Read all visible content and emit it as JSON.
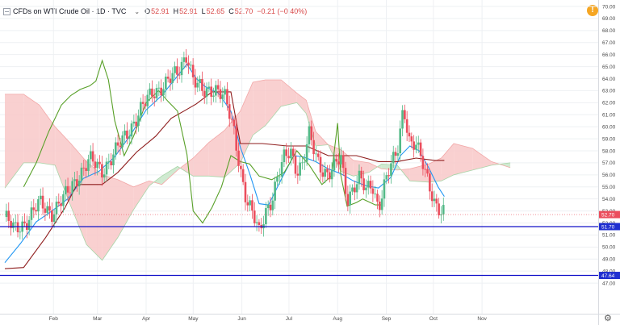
{
  "header": {
    "symbol": "CFDs on WTI Crude Oil · 1D · TVC",
    "o_label": "O",
    "o": "52.91",
    "h_label": "H",
    "h": "52.91",
    "l_label": "L",
    "l": "52.65",
    "c_label": "C",
    "c": "52.70",
    "change": "−0.21 (−0.40%)"
  },
  "colors": {
    "up": "#53b987",
    "down": "#eb4d5c",
    "tenkan": "#2196f3",
    "kijun": "#8e1c1c",
    "lagging": "#58a028",
    "cloud_bull": "#c8e6c9",
    "cloud_bear": "#f8c8c8",
    "level_line": "#1010c8",
    "price_tag": "#eb4d5c",
    "level_tag": "#2030d0"
  },
  "chart_data": {
    "type": "candlestick",
    "title": "CFDs on WTI Crude Oil · 1D · TVC",
    "ylim": [
      46.0,
      70.0
    ],
    "y_ticks": [
      "47.00",
      "48.00",
      "49.00",
      "50.00",
      "51.00",
      "52.00",
      "53.00",
      "54.00",
      "55.00",
      "56.00",
      "57.00",
      "58.00",
      "59.00",
      "60.00",
      "61.00",
      "62.00",
      "63.00",
      "64.00",
      "65.00",
      "66.00",
      "67.00",
      "68.00",
      "69.00",
      "70.00"
    ],
    "x_ticks": [
      "Feb",
      "Mar",
      "Apr",
      "May",
      "Jun",
      "Jul",
      "Aug",
      "Sep",
      "Oct",
      "Nov"
    ],
    "x_tick_days": [
      31,
      59,
      90,
      120,
      151,
      181,
      212,
      243,
      273,
      304
    ],
    "x_range_days": [
      0,
      360
    ],
    "last_price": "52.70",
    "levels": [
      {
        "value": 51.7,
        "label": "51.70"
      },
      {
        "value": 47.64,
        "label": "47.64"
      }
    ],
    "price_path": [
      [
        0,
        52.5
      ],
      [
        6,
        51.4
      ],
      [
        14,
        52.2
      ],
      [
        22,
        53.6
      ],
      [
        30,
        52.9
      ],
      [
        38,
        54.1
      ],
      [
        46,
        55.8
      ],
      [
        54,
        57.2
      ],
      [
        62,
        56.4
      ],
      [
        70,
        57.8
      ],
      [
        78,
        59.5
      ],
      [
        86,
        61.3
      ],
      [
        94,
        62.8
      ],
      [
        102,
        63.6
      ],
      [
        110,
        64.4
      ],
      [
        116,
        66.2
      ],
      [
        120,
        63.9
      ],
      [
        126,
        62.8
      ],
      [
        134,
        63.3
      ],
      [
        140,
        62.4
      ],
      [
        146,
        59.6
      ],
      [
        150,
        56.6
      ],
      [
        154,
        53.8
      ],
      [
        158,
        52.6
      ],
      [
        162,
        51.2
      ],
      [
        166,
        53.1
      ],
      [
        170,
        53.9
      ],
      [
        174,
        55.7
      ],
      [
        178,
        57.4
      ],
      [
        182,
        58.2
      ],
      [
        186,
        56.4
      ],
      [
        190,
        56.8
      ],
      [
        194,
        59.3
      ],
      [
        198,
        57.7
      ],
      [
        202,
        56.6
      ],
      [
        206,
        55.9
      ],
      [
        210,
        56.5
      ],
      [
        214,
        57.6
      ],
      [
        218,
        54.1
      ],
      [
        222,
        54.9
      ],
      [
        226,
        55.6
      ],
      [
        230,
        54.7
      ],
      [
        234,
        55.4
      ],
      [
        238,
        53.3
      ],
      [
        242,
        55.1
      ],
      [
        246,
        56.7
      ],
      [
        250,
        58.1
      ],
      [
        254,
        61.9
      ],
      [
        258,
        58.4
      ],
      [
        262,
        58.3
      ],
      [
        266,
        57.2
      ],
      [
        270,
        55.6
      ],
      [
        274,
        53.5
      ],
      [
        278,
        52.6
      ],
      [
        280,
        52.7
      ]
    ],
    "series": [
      {
        "name": "Tenkan",
        "values": [
          [
            0,
            48.7
          ],
          [
            10,
            50.3
          ],
          [
            20,
            52.1
          ],
          [
            30,
            53.0
          ],
          [
            40,
            54.0
          ],
          [
            50,
            55.7
          ],
          [
            60,
            56.3
          ],
          [
            70,
            57.5
          ],
          [
            80,
            59.3
          ],
          [
            90,
            61.4
          ],
          [
            100,
            62.6
          ],
          [
            108,
            63.9
          ],
          [
            116,
            65.2
          ],
          [
            122,
            64.0
          ],
          [
            128,
            63.3
          ],
          [
            136,
            62.8
          ],
          [
            144,
            61.3
          ],
          [
            150,
            58.3
          ],
          [
            156,
            56.1
          ],
          [
            162,
            53.6
          ],
          [
            168,
            53.5
          ],
          [
            176,
            55.6
          ],
          [
            184,
            57.6
          ],
          [
            190,
            57.5
          ],
          [
            198,
            57.1
          ],
          [
            206,
            56.5
          ],
          [
            214,
            56.1
          ],
          [
            222,
            55.5
          ],
          [
            230,
            55.1
          ],
          [
            238,
            54.9
          ],
          [
            246,
            55.8
          ],
          [
            252,
            57.6
          ],
          [
            258,
            58.4
          ],
          [
            264,
            58.0
          ],
          [
            270,
            56.6
          ],
          [
            276,
            55.0
          ],
          [
            280,
            54.2
          ]
        ]
      },
      {
        "name": "Kijun",
        "values": [
          [
            0,
            48.2
          ],
          [
            12,
            48.3
          ],
          [
            26,
            50.8
          ],
          [
            38,
            53.2
          ],
          [
            46,
            55.2
          ],
          [
            62,
            55.2
          ],
          [
            72,
            56.2
          ],
          [
            84,
            57.9
          ],
          [
            96,
            59.2
          ],
          [
            106,
            60.7
          ],
          [
            114,
            61.3
          ],
          [
            122,
            61.9
          ],
          [
            132,
            62.9
          ],
          [
            144,
            62.9
          ],
          [
            150,
            58.6
          ],
          [
            164,
            58.6
          ],
          [
            180,
            58.4
          ],
          [
            192,
            58.4
          ],
          [
            206,
            57.6
          ],
          [
            224,
            57.6
          ],
          [
            238,
            57.1
          ],
          [
            250,
            57.1
          ],
          [
            262,
            57.4
          ],
          [
            274,
            57.2
          ],
          [
            280,
            57.2
          ]
        ]
      },
      {
        "name": "Lagging Span",
        "values": [
          [
            12,
            55.0
          ],
          [
            20,
            57.0
          ],
          [
            28,
            59.6
          ],
          [
            36,
            61.8
          ],
          [
            42,
            62.6
          ],
          [
            48,
            63.1
          ],
          [
            54,
            63.4
          ],
          [
            58,
            63.8
          ],
          [
            62,
            65.5
          ],
          [
            66,
            63.9
          ],
          [
            70,
            60.5
          ],
          [
            76,
            57.6
          ],
          [
            82,
            59.2
          ],
          [
            90,
            62.0
          ],
          [
            98,
            63.0
          ],
          [
            104,
            62.1
          ],
          [
            110,
            61.3
          ],
          [
            116,
            57.7
          ],
          [
            120,
            53.0
          ],
          [
            126,
            52.0
          ],
          [
            132,
            53.3
          ],
          [
            138,
            55.0
          ],
          [
            144,
            57.6
          ],
          [
            150,
            57.1
          ],
          [
            156,
            56.9
          ],
          [
            162,
            55.9
          ],
          [
            170,
            55.6
          ],
          [
            178,
            56.2
          ],
          [
            186,
            58.0
          ],
          [
            194,
            56.8
          ],
          [
            202,
            55.2
          ],
          [
            208,
            55.9
          ],
          [
            212,
            60.3
          ],
          [
            214,
            56.0
          ],
          [
            218,
            53.4
          ],
          [
            224,
            53.7
          ],
          [
            228,
            54.0
          ],
          [
            236,
            53.5
          ],
          [
            240,
            53.5
          ]
        ]
      }
    ],
    "cloud": [
      [
        0,
        62.7,
        54.9
      ],
      [
        12,
        62.7,
        57.0
      ],
      [
        22,
        61.8,
        57.0
      ],
      [
        32,
        60.0,
        56.8
      ],
      [
        42,
        58.6,
        53.4
      ],
      [
        52,
        57.1,
        50.2
      ],
      [
        62,
        56.0,
        48.9
      ],
      [
        72,
        55.6,
        50.8
      ],
      [
        82,
        55.0,
        53.1
      ],
      [
        92,
        55.5,
        55.1
      ],
      [
        100,
        55.2,
        55.9
      ],
      [
        110,
        56.4,
        56.7
      ],
      [
        120,
        57.4,
        55.9
      ],
      [
        130,
        58.7,
        55.9
      ],
      [
        140,
        59.7,
        55.8
      ],
      [
        150,
        61.3,
        57.0
      ],
      [
        158,
        63.7,
        59.3
      ],
      [
        166,
        63.9,
        60.1
      ],
      [
        176,
        63.9,
        61.7
      ],
      [
        186,
        62.8,
        62.0
      ],
      [
        192,
        62.2,
        61.1
      ],
      [
        198,
        59.6,
        58.4
      ],
      [
        206,
        58.5,
        58.5
      ],
      [
        214,
        58.1,
        56.3
      ],
      [
        222,
        57.2,
        55.9
      ],
      [
        232,
        57.0,
        56.2
      ],
      [
        240,
        56.5,
        56.9
      ],
      [
        250,
        56.4,
        56.8
      ],
      [
        258,
        56.5,
        55.5
      ],
      [
        270,
        56.9,
        55.4
      ],
      [
        278,
        57.4,
        55.5
      ],
      [
        286,
        58.6,
        56.0
      ],
      [
        298,
        58.2,
        56.4
      ],
      [
        310,
        57.1,
        56.8
      ],
      [
        322,
        56.6,
        57.0
      ]
    ]
  }
}
